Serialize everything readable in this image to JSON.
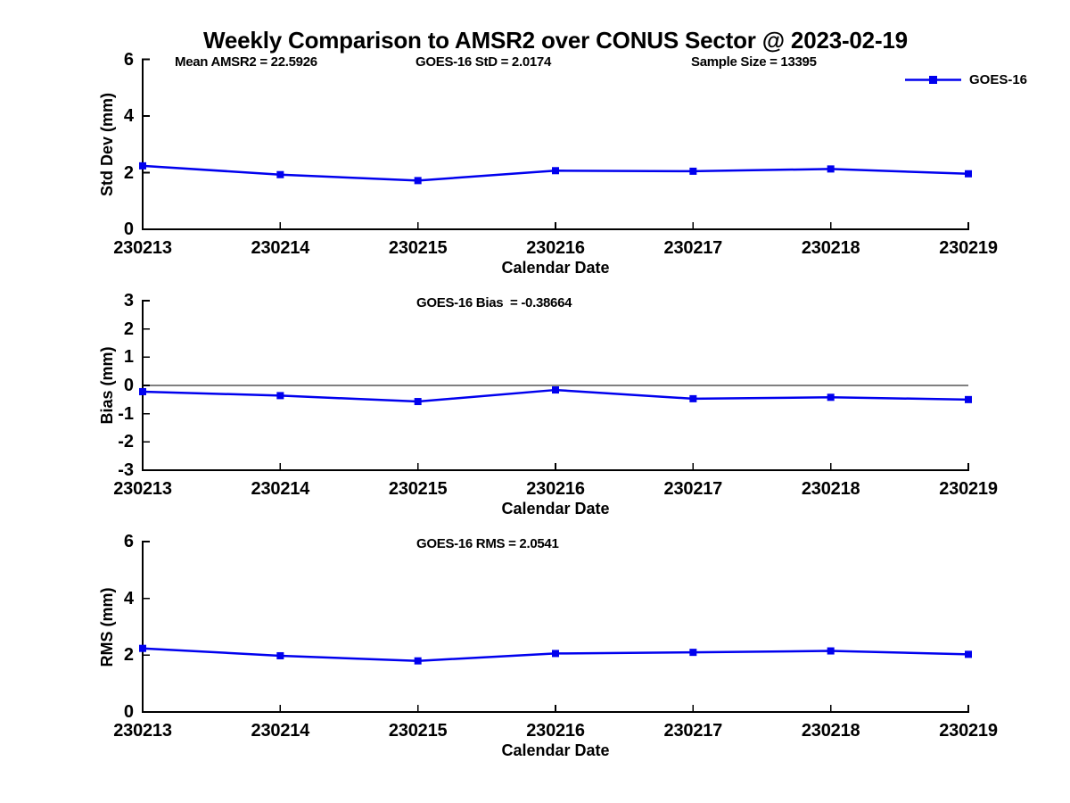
{
  "title": "Weekly Comparison to AMSR2 over CONUS Sector @ 2023-02-19",
  "colors": {
    "series_line": "#0000ee",
    "axis": "#000000",
    "zero_line": "#000000",
    "background": "#ffffff"
  },
  "chart_data": [
    {
      "type": "line",
      "ylabel": "Std Dev (mm)",
      "xlabel": "Calendar Date",
      "annotations": [
        "Mean AMSR2 = 22.5926",
        "GOES-16 StD = 2.0174",
        "Sample Size = 13395"
      ],
      "categories": [
        "230213",
        "230214",
        "230215",
        "230216",
        "230217",
        "230218",
        "230219"
      ],
      "series": [
        {
          "name": "GOES-16",
          "values": [
            2.24,
            1.93,
            1.72,
            2.07,
            2.05,
            2.13,
            1.96
          ]
        }
      ],
      "ylim": [
        0,
        6
      ],
      "yticks": [
        0,
        2,
        4,
        6
      ],
      "legend_position": "top-right",
      "grid": false,
      "marker": "square"
    },
    {
      "type": "line",
      "ylabel": "Bias (mm)",
      "xlabel": "Calendar Date",
      "annotations": [
        "GOES-16 Bias  = -0.38664"
      ],
      "categories": [
        "230213",
        "230214",
        "230215",
        "230216",
        "230217",
        "230218",
        "230219"
      ],
      "series": [
        {
          "name": "GOES-16",
          "values": [
            -0.22,
            -0.36,
            -0.57,
            -0.16,
            -0.47,
            -0.42,
            -0.5
          ]
        }
      ],
      "ylim": [
        -3,
        3
      ],
      "yticks": [
        3,
        2,
        1,
        0,
        -1,
        -2,
        -3
      ],
      "zero_line": true,
      "grid": false,
      "marker": "square"
    },
    {
      "type": "line",
      "ylabel": "RMS (mm)",
      "xlabel": "Calendar Date",
      "annotations": [
        "GOES-16 RMS = 2.0541"
      ],
      "categories": [
        "230213",
        "230214",
        "230215",
        "230216",
        "230217",
        "230218",
        "230219"
      ],
      "series": [
        {
          "name": "GOES-16",
          "values": [
            2.24,
            1.98,
            1.8,
            2.06,
            2.1,
            2.15,
            2.03
          ]
        }
      ],
      "ylim": [
        0,
        6
      ],
      "yticks": [
        0,
        2,
        4,
        6
      ],
      "grid": false,
      "marker": "square"
    }
  ]
}
